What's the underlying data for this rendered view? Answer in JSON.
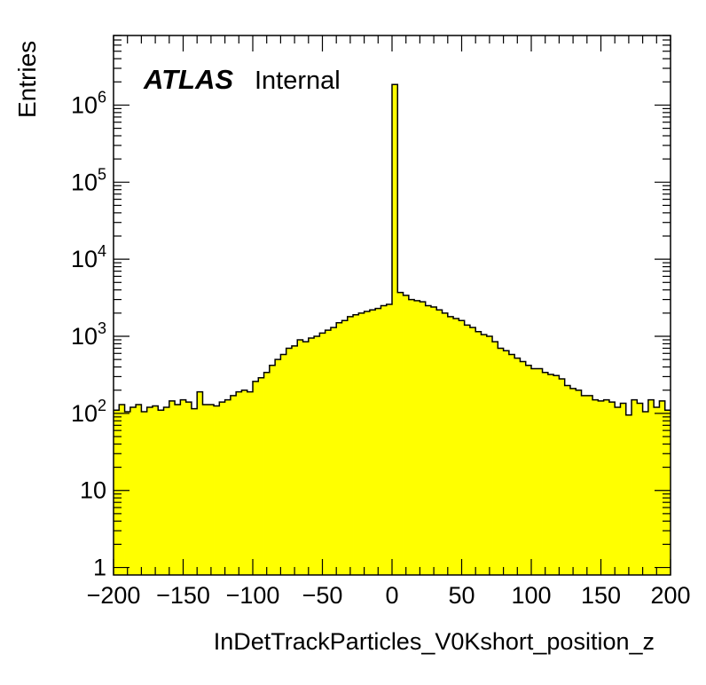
{
  "chart_data": {
    "type": "histogram",
    "brand_label": "ATLAS",
    "status_label": "Internal",
    "xlabel": "InDetTrackParticles_V0Kshort_position_z",
    "ylabel": "Entries",
    "xlim": [
      -200,
      200
    ],
    "ylim": [
      0.8,
      8000000
    ],
    "yscale": "log",
    "grid": false,
    "fill_color": "#ffff00",
    "line_color": "#000000",
    "xtick_labels": [
      "−200",
      "−150",
      "−100",
      "−50",
      "0",
      "50",
      "100",
      "150",
      "200"
    ],
    "xtick_values": [
      -200,
      -150,
      -100,
      -50,
      0,
      50,
      100,
      150,
      200
    ],
    "ytick_values": [
      1,
      10,
      100,
      1000,
      10000,
      100000,
      1000000
    ],
    "ytick_labels": [
      {
        "base": "1",
        "exp": ""
      },
      {
        "base": "10",
        "exp": ""
      },
      {
        "base": "10",
        "exp": "2"
      },
      {
        "base": "10",
        "exp": "3"
      },
      {
        "base": "10",
        "exp": "4"
      },
      {
        "base": "10",
        "exp": "5"
      },
      {
        "base": "10",
        "exp": "6"
      }
    ],
    "bin_width": 4,
    "bin_low_edges": [
      -200,
      -196,
      -192,
      -188,
      -184,
      -180,
      -176,
      -172,
      -168,
      -164,
      -160,
      -156,
      -152,
      -148,
      -144,
      -140,
      -136,
      -132,
      -128,
      -124,
      -120,
      -116,
      -112,
      -108,
      -104,
      -100,
      -96,
      -92,
      -88,
      -84,
      -80,
      -76,
      -72,
      -68,
      -64,
      -60,
      -56,
      -52,
      -48,
      -44,
      -40,
      -36,
      -32,
      -28,
      -24,
      -20,
      -16,
      -12,
      -8,
      -4,
      0,
      4,
      8,
      12,
      16,
      20,
      24,
      28,
      32,
      36,
      40,
      44,
      48,
      52,
      56,
      60,
      64,
      68,
      72,
      76,
      80,
      84,
      88,
      92,
      96,
      100,
      104,
      108,
      112,
      116,
      120,
      124,
      128,
      132,
      136,
      140,
      144,
      148,
      152,
      156,
      160,
      164,
      168,
      172,
      176,
      180,
      184,
      188,
      192,
      196
    ],
    "values": [
      110,
      130,
      105,
      120,
      130,
      105,
      120,
      125,
      110,
      120,
      145,
      130,
      150,
      140,
      115,
      190,
      130,
      130,
      125,
      140,
      150,
      170,
      190,
      200,
      190,
      260,
      290,
      340,
      420,
      500,
      580,
      700,
      750,
      900,
      850,
      950,
      1000,
      1100,
      1200,
      1300,
      1500,
      1600,
      1800,
      1900,
      2000,
      2100,
      2200,
      2300,
      2500,
      2600,
      1850000,
      3700,
      3400,
      3000,
      2900,
      2800,
      2500,
      2400,
      2200,
      2000,
      1800,
      1700,
      1600,
      1400,
      1300,
      1150,
      1050,
      1000,
      850,
      700,
      650,
      580,
      520,
      470,
      420,
      380,
      380,
      340,
      320,
      310,
      280,
      230,
      210,
      200,
      170,
      170,
      150,
      145,
      150,
      140,
      120,
      135,
      95,
      150,
      135,
      105,
      150,
      120,
      145,
      110
    ]
  }
}
